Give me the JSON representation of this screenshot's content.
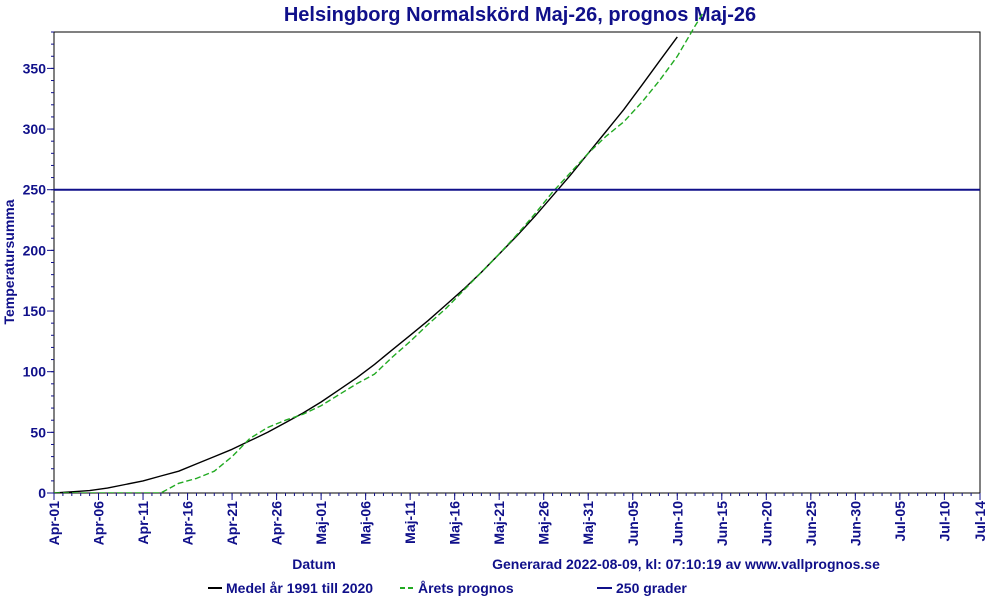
{
  "chart_data": {
    "type": "line",
    "title": "Helsingborg Normalskörd Maj-26, prognos Maj-26",
    "xlabel": "Datum",
    "ylabel": "Temperatursumma",
    "footer": "Generarad 2022-08-09, kl: 07:10:19 av www.vallprognos.se",
    "x_ticks": [
      "Apr-01",
      "Apr-06",
      "Apr-11",
      "Apr-16",
      "Apr-21",
      "Apr-26",
      "Maj-01",
      "Maj-06",
      "Maj-11",
      "Maj-16",
      "Maj-21",
      "Maj-26",
      "Maj-31",
      "Jun-05",
      "Jun-10",
      "Jun-15",
      "Jun-20",
      "Jun-25",
      "Jun-30",
      "Jul-05",
      "Jul-10",
      "Jul-14"
    ],
    "y_ticks": [
      0,
      50,
      100,
      150,
      200,
      250,
      300,
      350
    ],
    "xlim": [
      0,
      104
    ],
    "ylim": [
      0,
      380
    ],
    "grid": false,
    "legend_position": "bottom",
    "series": [
      {
        "name": "Medel år 1991 till 2020",
        "color": "#000000",
        "style": "solid",
        "x": [
          0,
          2,
          4,
          6,
          8,
          10,
          12,
          14,
          16,
          18,
          20,
          22,
          24,
          26,
          28,
          30,
          32,
          34,
          36,
          38,
          40,
          42,
          44,
          46,
          48,
          50,
          52,
          54,
          56,
          58,
          60,
          62,
          64,
          66,
          68,
          70
        ],
        "values": [
          0,
          1,
          2,
          4,
          7,
          10,
          14,
          18,
          24,
          30,
          36,
          43,
          50,
          58,
          66,
          75,
          85,
          95,
          106,
          118,
          130,
          142,
          155,
          168,
          182,
          197,
          212,
          228,
          245,
          262,
          280,
          298,
          316,
          336,
          356,
          376
        ]
      },
      {
        "name": "Årets prognos",
        "color": "#22aa22",
        "style": "dashed",
        "x": [
          0,
          2,
          4,
          6,
          8,
          10,
          11,
          12,
          13,
          14,
          16,
          18,
          20,
          22,
          24,
          26,
          28,
          30,
          32,
          34,
          36,
          38,
          40,
          42,
          44,
          46,
          48,
          50,
          52,
          54,
          56,
          58,
          60,
          62,
          64,
          66,
          68,
          70,
          72,
          73
        ],
        "values": [
          0,
          0,
          0,
          0,
          0,
          0,
          0,
          0,
          4,
          8,
          12,
          18,
          30,
          45,
          54,
          60,
          65,
          72,
          81,
          90,
          98,
          112,
          125,
          139,
          152,
          167,
          182,
          197,
          213,
          230,
          248,
          264,
          280,
          294,
          306,
          322,
          340,
          360,
          385,
          397
        ]
      },
      {
        "name": "250 grader",
        "color": "#10108a",
        "style": "solid",
        "x": [
          0,
          104
        ],
        "values": [
          250,
          250
        ]
      }
    ]
  }
}
